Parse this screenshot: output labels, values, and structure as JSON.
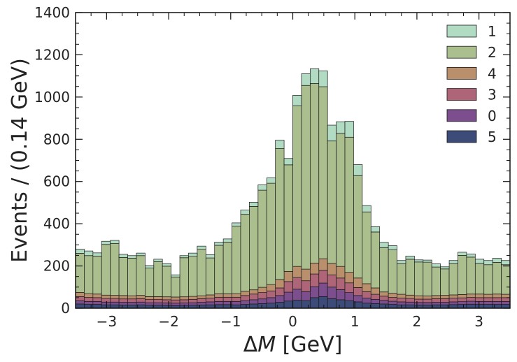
{
  "chart_data": {
    "type": "area",
    "subtype": "stacked-histogram",
    "xlabel": "ΔM [GeV]",
    "ylabel": "Events / (0.14 GeV)",
    "xlim": [
      -3.5,
      3.5
    ],
    "ylim": [
      0,
      1400
    ],
    "x_ticks": [
      -3,
      -2,
      -1,
      0,
      1,
      2,
      3
    ],
    "x_tick_labels": [
      "−3",
      "−2",
      "−1",
      "0",
      "1",
      "2",
      "3"
    ],
    "y_ticks": [
      0,
      200,
      400,
      600,
      800,
      1000,
      1200,
      1400
    ],
    "y_tick_labels": [
      "0",
      "200",
      "400",
      "600",
      "800",
      "1000",
      "1200",
      "1400"
    ],
    "bin_edges_start": -3.5,
    "bin_width": 0.14,
    "n_bins": 50,
    "legend_position": "top-right",
    "legend_order": [
      "1",
      "2",
      "4",
      "3",
      "0",
      "5"
    ],
    "series": [
      {
        "name": "5",
        "color": "#3d4b79",
        "values": [
          20,
          18,
          18,
          16,
          16,
          15,
          15,
          16,
          14,
          14,
          13,
          12,
          13,
          14,
          15,
          16,
          17,
          17,
          16,
          18,
          20,
          22,
          24,
          28,
          34,
          38,
          36,
          50,
          55,
          45,
          40,
          36,
          30,
          24,
          22,
          20,
          18,
          16,
          16,
          15,
          15,
          16,
          16,
          17,
          18,
          19,
          18,
          18,
          18,
          18
        ]
      },
      {
        "name": "0",
        "color": "#7c4e8e",
        "values": [
          15,
          14,
          14,
          13,
          13,
          13,
          13,
          13,
          12,
          12,
          12,
          12,
          12,
          12,
          13,
          14,
          15,
          15,
          16,
          18,
          20,
          22,
          26,
          32,
          42,
          52,
          42,
          52,
          64,
          55,
          48,
          38,
          30,
          24,
          20,
          17,
          15,
          14,
          13,
          12,
          12,
          12,
          12,
          13,
          13,
          14,
          14,
          14,
          14,
          14
        ]
      },
      {
        "name": "3",
        "color": "#ae6578",
        "values": [
          20,
          19,
          18,
          17,
          17,
          16,
          16,
          16,
          15,
          15,
          15,
          15,
          15,
          16,
          17,
          18,
          20,
          20,
          20,
          24,
          27,
          30,
          32,
          36,
          50,
          55,
          52,
          60,
          60,
          58,
          55,
          46,
          38,
          30,
          24,
          20,
          18,
          18,
          17,
          16,
          16,
          17,
          17,
          18,
          18,
          18,
          18,
          18,
          18,
          18
        ]
      },
      {
        "name": "4",
        "color": "#ba8f6c",
        "values": [
          20,
          18,
          17,
          16,
          15,
          16,
          15,
          16,
          14,
          14,
          14,
          14,
          14,
          14,
          14,
          15,
          16,
          16,
          17,
          20,
          20,
          25,
          30,
          40,
          48,
          53,
          55,
          52,
          55,
          54,
          55,
          50,
          45,
          38,
          30,
          20,
          20,
          18,
          16,
          16,
          15,
          15,
          16,
          15,
          16,
          16,
          17,
          16,
          17,
          16
        ]
      },
      {
        "name": "2",
        "color": "#aabf8d",
        "values": [
          185,
          180,
          180,
          240,
          245,
          180,
          178,
          188,
          135,
          165,
          145,
          95,
          185,
          190,
          220,
          175,
          230,
          245,
          320,
          365,
          395,
          460,
          480,
          620,
          505,
          760,
          870,
          850,
          815,
          580,
          630,
          640,
          485,
          340,
          265,
          210,
          205,
          145,
          170,
          160,
          160,
          135,
          125,
          148,
          185,
          175,
          145,
          140,
          150,
          140
        ]
      },
      {
        "name": "1",
        "color": "#b2dbc4",
        "values": [
          20,
          22,
          15,
          15,
          15,
          15,
          12,
          12,
          12,
          12,
          12,
          10,
          10,
          15,
          15,
          15,
          15,
          15,
          15,
          20,
          20,
          25,
          25,
          40,
          30,
          50,
          55,
          70,
          75,
          75,
          55,
          75,
          52,
          30,
          25,
          25,
          20,
          15,
          15,
          10,
          10,
          15,
          10,
          15,
          15,
          15,
          20,
          20,
          20,
          20
        ]
      }
    ]
  }
}
